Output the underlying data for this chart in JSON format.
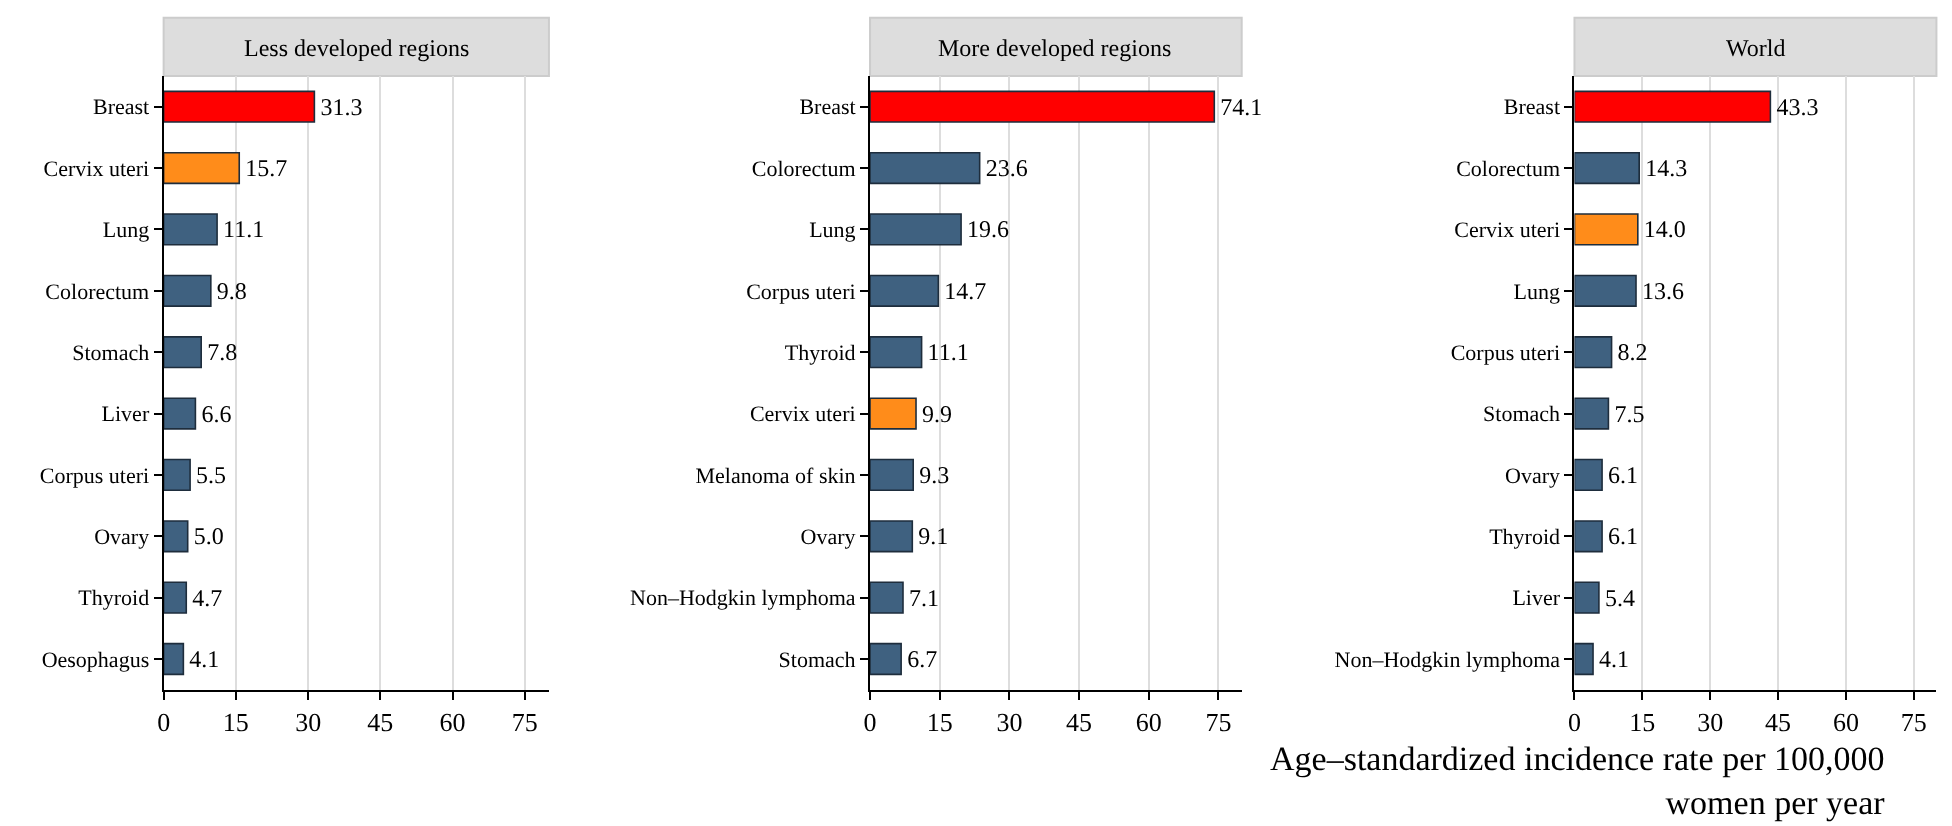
{
  "chart_data": [
    {
      "type": "bar",
      "orientation": "horizontal",
      "title": "Less developed regions",
      "categories": [
        "Breast",
        "Cervix uteri",
        "Lung",
        "Colorectum",
        "Stomach",
        "Liver",
        "Corpus uteri",
        "Ovary",
        "Thyroid",
        "Oesophagus"
      ],
      "values": [
        31.3,
        15.7,
        11.1,
        9.8,
        7.8,
        6.6,
        5.5,
        5.0,
        4.7,
        4.1
      ],
      "value_labels": [
        "31.3",
        "15.7",
        "11.1",
        "9.8",
        "7.8",
        "6.6",
        "5.5",
        "5.0",
        "4.7",
        "4.1"
      ],
      "colors": [
        "#ff0000",
        "#ff8c1a",
        "#3f6180",
        "#3f6180",
        "#3f6180",
        "#3f6180",
        "#3f6180",
        "#3f6180",
        "#3f6180",
        "#3f6180"
      ],
      "xlim": [
        0,
        80
      ],
      "xticks": [
        0,
        15,
        30,
        45,
        60,
        75
      ],
      "grid": "x"
    },
    {
      "type": "bar",
      "orientation": "horizontal",
      "title": "More developed regions",
      "categories": [
        "Breast",
        "Colorectum",
        "Lung",
        "Corpus uteri",
        "Thyroid",
        "Cervix uteri",
        "Melanoma of skin",
        "Ovary",
        "Non–Hodgkin lymphoma",
        "Stomach"
      ],
      "values": [
        74.1,
        23.6,
        19.6,
        14.7,
        11.1,
        9.9,
        9.3,
        9.1,
        7.1,
        6.7
      ],
      "value_labels": [
        "74.1",
        "23.6",
        "19.6",
        "14.7",
        "11.1",
        "9.9",
        "9.3",
        "9.1",
        "7.1",
        "6.7"
      ],
      "colors": [
        "#ff0000",
        "#3f6180",
        "#3f6180",
        "#3f6180",
        "#3f6180",
        "#ff8c1a",
        "#3f6180",
        "#3f6180",
        "#3f6180",
        "#3f6180"
      ],
      "xlim": [
        0,
        80
      ],
      "xticks": [
        0,
        15,
        30,
        45,
        60,
        75
      ],
      "grid": "x"
    },
    {
      "type": "bar",
      "orientation": "horizontal",
      "title": "World",
      "xlabel": "Age–standardized incidence rate per 100,000 women per year",
      "categories": [
        "Breast",
        "Colorectum",
        "Cervix uteri",
        "Lung",
        "Corpus uteri",
        "Stomach",
        "Ovary",
        "Thyroid",
        "Liver",
        "Non–Hodgkin lymphoma"
      ],
      "values": [
        43.3,
        14.3,
        14.0,
        13.6,
        8.2,
        7.5,
        6.1,
        6.1,
        5.4,
        4.1
      ],
      "value_labels": [
        "43.3",
        "14.3",
        "14.0",
        "13.6",
        "8.2",
        "7.5",
        "6.1",
        "6.1",
        "5.4",
        "4.1"
      ],
      "colors": [
        "#ff0000",
        "#3f6180",
        "#ff8c1a",
        "#3f6180",
        "#3f6180",
        "#3f6180",
        "#3f6180",
        "#3f6180",
        "#3f6180",
        "#3f6180"
      ],
      "xlim": [
        0,
        80
      ],
      "xticks": [
        0,
        15,
        30,
        45,
        60,
        75
      ],
      "grid": "x"
    }
  ]
}
